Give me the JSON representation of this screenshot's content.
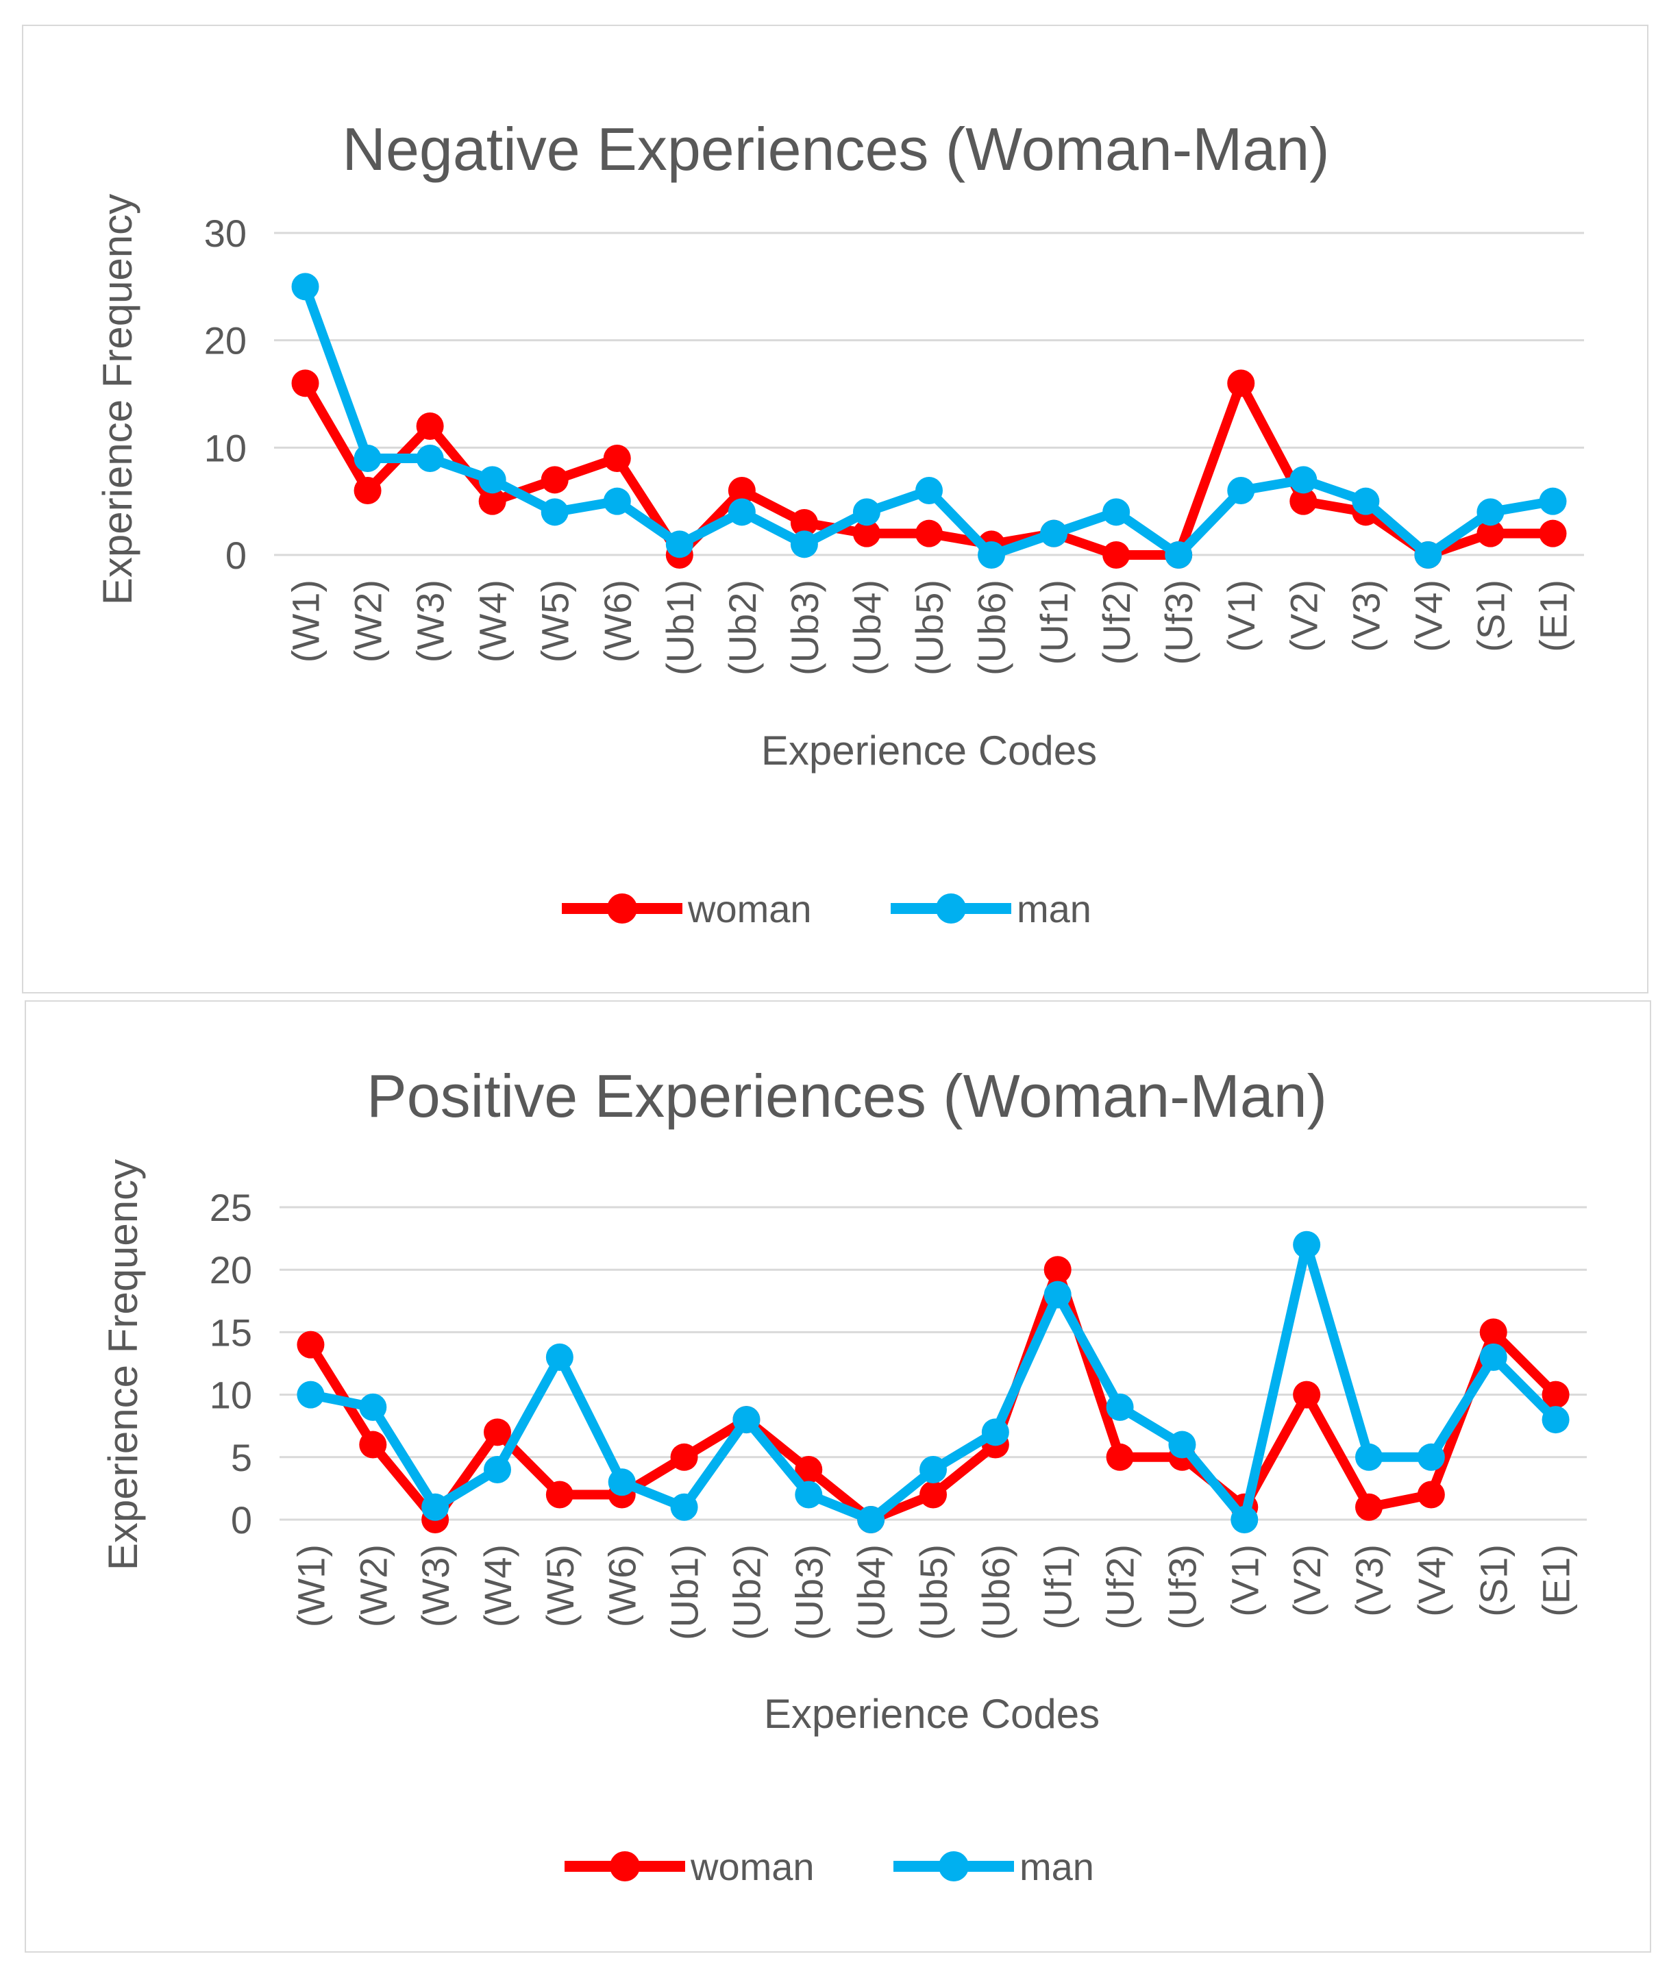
{
  "colors": {
    "woman": "#ff0000",
    "man": "#00b0f0",
    "grid": "#d9d9d9",
    "text": "#595959"
  },
  "chart_data": [
    {
      "type": "line",
      "title": "Negative Experiences (Woman-Man)",
      "xlabel": "Experience Codes",
      "ylabel": "Experience Frequency",
      "ylim": [
        0,
        30
      ],
      "yticks": [
        "0",
        "10",
        "20",
        "30"
      ],
      "categories": [
        "(W1)",
        "(W2)",
        "(W3)",
        "(W4)",
        "(W5)",
        "(W6)",
        "(Ub1)",
        "(Ub2)",
        "(Ub3)",
        "(Ub4)",
        "(Ub5)",
        "(Ub6)",
        "(Uf1)",
        "(Uf2)",
        "(Uf3)",
        "(V1)",
        "(V2)",
        "(V3)",
        "(V4)",
        "(S1)",
        "(E1)"
      ],
      "series": [
        {
          "name": "woman",
          "values": [
            16,
            6,
            12,
            5,
            7,
            9,
            0,
            6,
            3,
            2,
            2,
            1,
            2,
            0,
            0,
            16,
            5,
            4,
            0,
            2,
            2
          ]
        },
        {
          "name": "man",
          "values": [
            25,
            9,
            9,
            7,
            4,
            5,
            1,
            4,
            1,
            4,
            6,
            0,
            2,
            4,
            0,
            6,
            7,
            5,
            0,
            4,
            5
          ]
        }
      ],
      "legend": [
        "woman",
        "man"
      ],
      "legend_position": "bottom",
      "grid": true
    },
    {
      "type": "line",
      "title": "Positive Experiences (Woman-Man)",
      "xlabel": "Experience Codes",
      "ylabel": "Experience Frequency",
      "ylim": [
        0,
        25
      ],
      "yticks": [
        "0",
        "5",
        "10",
        "15",
        "20",
        "25"
      ],
      "categories": [
        "(W1)",
        "(W2)",
        "(W3)",
        "(W4)",
        "(W5)",
        "(W6)",
        "(Ub1)",
        "(Ub2)",
        "(Ub3)",
        "(Ub4)",
        "(Ub5)",
        "(Ub6)",
        "(Uf1)",
        "(Uf2)",
        "(Uf3)",
        "(V1)",
        "(V2)",
        "(V3)",
        "(V4)",
        "(S1)",
        "(E1)"
      ],
      "series": [
        {
          "name": "woman",
          "values": [
            14,
            6,
            0,
            7,
            2,
            2,
            5,
            8,
            4,
            0,
            2,
            6,
            20,
            5,
            5,
            1,
            10,
            1,
            2,
            15,
            10
          ]
        },
        {
          "name": "man",
          "values": [
            10,
            9,
            1,
            4,
            13,
            3,
            1,
            8,
            2,
            0,
            4,
            7,
            18,
            9,
            6,
            0,
            22,
            5,
            5,
            13,
            8
          ]
        }
      ],
      "legend": [
        "woman",
        "man"
      ],
      "legend_position": "bottom",
      "grid": true
    }
  ]
}
